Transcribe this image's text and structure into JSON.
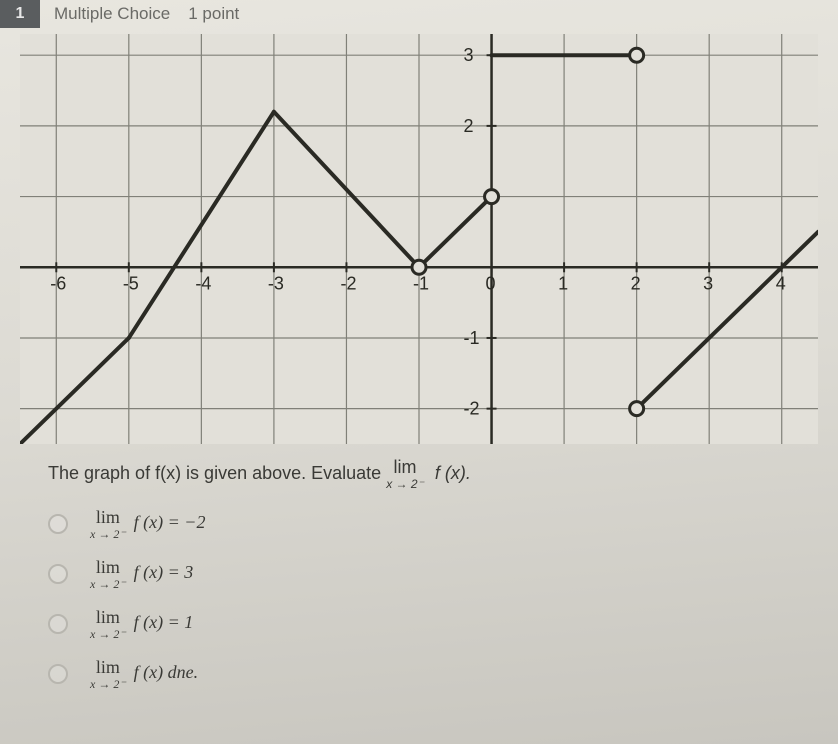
{
  "header": {
    "number": "1",
    "type": "Multiple Choice",
    "points": "1 point"
  },
  "graph": {
    "type": "line",
    "bg_color": "#e2e0d9",
    "grid_color": "#808078",
    "axis_color": "#2a2a24",
    "curve_color": "#2a2a24",
    "curve_width": 4,
    "xlim": [
      -6.5,
      4.5
    ],
    "ylim": [
      -2.5,
      3.3
    ],
    "xticks": [
      -6,
      -5,
      -4,
      -3,
      -2,
      -1,
      0,
      1,
      2,
      3,
      4
    ],
    "yticks": [
      -2,
      -1,
      1,
      2,
      3
    ],
    "xtick_labels": [
      "-6",
      "-5",
      "-4",
      "-3",
      "-2",
      "-1",
      "0",
      "1",
      "2",
      "3",
      "4"
    ],
    "ytick_labels": [
      "-2",
      "-1",
      "",
      "2",
      "3"
    ],
    "label_color": "#2a2a24",
    "label_fontsize": 18,
    "segments": [
      [
        [
          -6.5,
          -2.5
        ],
        [
          -5,
          -1
        ]
      ],
      [
        [
          -5,
          -1
        ],
        [
          -3,
          2.2
        ]
      ],
      [
        [
          -3,
          2.2
        ],
        [
          -1,
          0
        ]
      ],
      [
        [
          -1,
          0
        ],
        [
          0,
          1
        ]
      ],
      [
        [
          0,
          3
        ],
        [
          2,
          3
        ]
      ],
      [
        [
          2,
          -2
        ],
        [
          4.5,
          0.5
        ]
      ]
    ],
    "open_points": [
      [
        -1,
        0
      ],
      [
        0,
        1
      ],
      [
        2,
        3
      ],
      [
        2,
        -2
      ]
    ],
    "closed_points": [],
    "point_radius": 7,
    "point_fill_open": "#e2e0d9",
    "point_stroke": "#2a2a24",
    "point_stroke_width": 3
  },
  "prompt": {
    "text_before": "The graph of f(x) is given above. Evaluate ",
    "lim_sub": "x → 2⁻",
    "lim_expr": "f (x).",
    "text_after": ""
  },
  "options": [
    {
      "sub": "x → 2⁻",
      "rhs": "f (x) = −2"
    },
    {
      "sub": "x → 2⁻",
      "rhs": "f (x) = 3"
    },
    {
      "sub": "x → 2⁻",
      "rhs": "f (x) = 1"
    },
    {
      "sub": "x → 2⁻",
      "rhs": "f (x) dne."
    }
  ]
}
